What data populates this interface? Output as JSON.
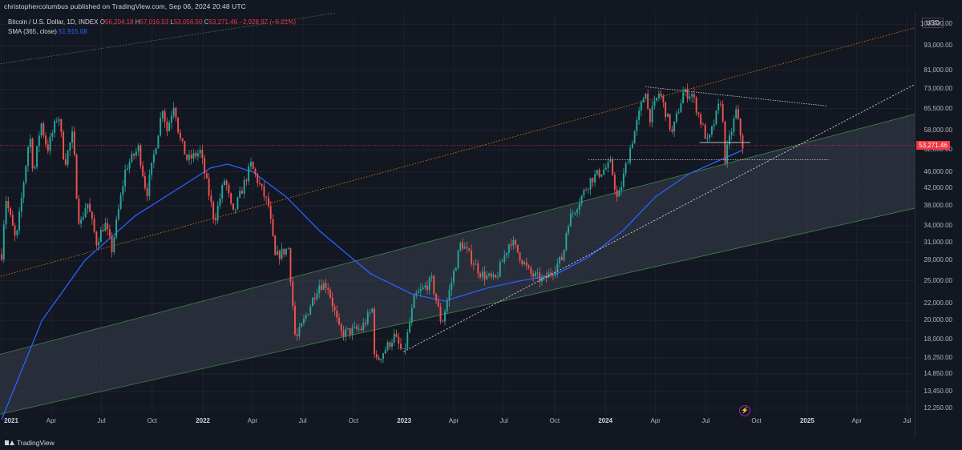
{
  "header": {
    "published": "christophercolumbus published on TradingView.com, Sep 06, 2024 20:48 UTC"
  },
  "legend": {
    "symbol": "Bitcoin / U.S. Dollar, 1D, INDEX",
    "open_label": "O",
    "open": "56,204.18",
    "high_label": "H",
    "high": "57,016.53",
    "low_label": "L",
    "low": "53,056.50",
    "close_label": "C",
    "close": "53,271.46",
    "change": "−2,928.97 (−5.21%)",
    "sma_label": "SMA (365, close)",
    "sma_value": "51,915.08"
  },
  "axis": {
    "currency": "USD",
    "last_price": "53,271.46"
  },
  "colors": {
    "background": "#131722",
    "up": "#26a69a",
    "down": "#ef5350",
    "sma": "#2962ff",
    "channel_fill": "#3b3f4f",
    "upper_channel": "#ff9800",
    "outer_channel": "#4caf50",
    "trendline": "#d1d4dc",
    "last_price_line": "#f23645"
  },
  "footer": {
    "brand": "TradingView"
  },
  "event_icon": "lightning-event-icon",
  "chart_data": {
    "type": "candlestick",
    "title": "Bitcoin / U.S. Dollar, 1D, INDEX",
    "scale": "log",
    "ylim": [
      11800,
      112000
    ],
    "xlim": [
      "2020-12-29",
      "2025-07-15"
    ],
    "y_ticks": [
      105000,
      93000,
      81000,
      73000,
      65500,
      58000,
      52000,
      46000,
      42000,
      38000,
      34000,
      31000,
      28000,
      25000,
      22000,
      20000,
      18000,
      16250,
      14850,
      13450,
      12250
    ],
    "x_ticks": [
      {
        "date": "2021-01-01",
        "label": "2021",
        "year": true
      },
      {
        "date": "2021-04-01",
        "label": "Apr"
      },
      {
        "date": "2021-07-01",
        "label": "Jul"
      },
      {
        "date": "2021-10-01",
        "label": "Oct"
      },
      {
        "date": "2022-01-01",
        "label": "2022",
        "year": true
      },
      {
        "date": "2022-04-01",
        "label": "Apr"
      },
      {
        "date": "2022-07-01",
        "label": "Jul"
      },
      {
        "date": "2022-10-01",
        "label": "Oct"
      },
      {
        "date": "2023-01-01",
        "label": "2023",
        "year": true
      },
      {
        "date": "2023-04-01",
        "label": "Apr"
      },
      {
        "date": "2023-07-01",
        "label": "Jul"
      },
      {
        "date": "2023-10-01",
        "label": "Oct"
      },
      {
        "date": "2024-01-01",
        "label": "2024",
        "year": true
      },
      {
        "date": "2024-04-01",
        "label": "Apr"
      },
      {
        "date": "2024-07-01",
        "label": "Jul"
      },
      {
        "date": "2024-10-01",
        "label": "Oct"
      },
      {
        "date": "2025-01-01",
        "label": "2025",
        "year": true
      },
      {
        "date": "2025-04-01",
        "label": "Apr"
      },
      {
        "date": "2025-07-01",
        "label": "Jul"
      }
    ],
    "price_path": [
      [
        "2021-01-01",
        29000
      ],
      [
        "2021-01-08",
        40000
      ],
      [
        "2021-01-27",
        31000
      ],
      [
        "2021-02-21",
        57000
      ],
      [
        "2021-02-28",
        45000
      ],
      [
        "2021-03-13",
        61000
      ],
      [
        "2021-03-25",
        52000
      ],
      [
        "2021-04-14",
        64000
      ],
      [
        "2021-04-25",
        48000
      ],
      [
        "2021-05-10",
        57000
      ],
      [
        "2021-05-19",
        37000
      ],
      [
        "2021-05-23",
        34000
      ],
      [
        "2021-06-05",
        39000
      ],
      [
        "2021-06-22",
        31000
      ],
      [
        "2021-07-07",
        34500
      ],
      [
        "2021-07-20",
        29800
      ],
      [
        "2021-08-14",
        47000
      ],
      [
        "2021-09-06",
        52500
      ],
      [
        "2021-09-21",
        40500
      ],
      [
        "2021-10-20",
        66000
      ],
      [
        "2021-10-28",
        58000
      ],
      [
        "2021-11-10",
        68000
      ],
      [
        "2021-11-19",
        56000
      ],
      [
        "2021-12-04",
        49000
      ],
      [
        "2021-12-27",
        51500
      ],
      [
        "2022-01-22",
        35000
      ],
      [
        "2022-02-10",
        44500
      ],
      [
        "2022-02-24",
        36000
      ],
      [
        "2022-03-29",
        47800
      ],
      [
        "2022-04-30",
        38000
      ],
      [
        "2022-05-12",
        28500
      ],
      [
        "2022-06-05",
        30000
      ],
      [
        "2022-06-18",
        17800
      ],
      [
        "2022-07-30",
        24500
      ],
      [
        "2022-08-15",
        24400
      ],
      [
        "2022-09-07",
        18600
      ],
      [
        "2022-10-15",
        19100
      ],
      [
        "2022-11-05",
        21400
      ],
      [
        "2022-11-09",
        15700
      ],
      [
        "2022-12-14",
        18300
      ],
      [
        "2022-12-31",
        16500
      ],
      [
        "2023-01-20",
        22800
      ],
      [
        "2023-02-20",
        25000
      ],
      [
        "2023-03-10",
        19600
      ],
      [
        "2023-04-14",
        31000
      ],
      [
        "2023-05-20",
        26000
      ],
      [
        "2023-06-15",
        25000
      ],
      [
        "2023-07-13",
        31500
      ],
      [
        "2023-08-17",
        26000
      ],
      [
        "2023-09-11",
        25000
      ],
      [
        "2023-10-16",
        28500
      ],
      [
        "2023-10-24",
        34500
      ],
      [
        "2023-12-05",
        44000
      ],
      [
        "2024-01-11",
        48000
      ],
      [
        "2024-01-23",
        39000
      ],
      [
        "2024-02-15",
        52500
      ],
      [
        "2024-03-14",
        73000
      ],
      [
        "2024-03-20",
        61500
      ],
      [
        "2024-04-08",
        72000
      ],
      [
        "2024-05-01",
        57000
      ],
      [
        "2024-05-21",
        71500
      ],
      [
        "2024-06-06",
        71000
      ],
      [
        "2024-07-05",
        53800
      ],
      [
        "2024-07-29",
        69500
      ],
      [
        "2024-08-05",
        49500
      ],
      [
        "2024-08-25",
        64500
      ],
      [
        "2024-09-06",
        53271
      ]
    ],
    "sma365_path": [
      [
        "2021-01-01",
        11500
      ],
      [
        "2021-03-15",
        20000
      ],
      [
        "2021-06-01",
        28000
      ],
      [
        "2021-09-01",
        36000
      ],
      [
        "2021-12-01",
        43000
      ],
      [
        "2022-01-15",
        47000
      ],
      [
        "2022-02-15",
        48000
      ],
      [
        "2022-04-01",
        46000
      ],
      [
        "2022-06-01",
        40000
      ],
      [
        "2022-08-01",
        33000
      ],
      [
        "2022-11-01",
        26000
      ],
      [
        "2023-01-15",
        23200
      ],
      [
        "2023-03-15",
        22300
      ],
      [
        "2023-06-01",
        24000
      ],
      [
        "2023-08-01",
        25000
      ],
      [
        "2023-10-01",
        25800
      ],
      [
        "2023-12-01",
        28500
      ],
      [
        "2024-02-01",
        33000
      ],
      [
        "2024-04-01",
        40000
      ],
      [
        "2024-06-01",
        45500
      ],
      [
        "2024-09-06",
        51915
      ]
    ],
    "drawings": {
      "channel_lower": [
        [
          "2020-12-25",
          11800
        ],
        [
          "2025-07-15",
          37500
        ]
      ],
      "channel_upper": [
        [
          "2020-12-25",
          16500
        ],
        [
          "2025-07-15",
          63500
        ]
      ],
      "upper_dotted": [
        [
          "2020-12-25",
          25500
        ],
        [
          "2025-07-15",
          103000
        ]
      ],
      "outer_dotted": [
        [
          "2020-12-25",
          84000
        ],
        [
          "2022-09-01",
          112000
        ]
      ],
      "trendline": [
        [
          "2022-12-31",
          16800
        ],
        [
          "2025-07-15",
          75000
        ]
      ],
      "triangle_top": [
        [
          "2024-03-14",
          74000
        ],
        [
          "2025-02-05",
          66500
        ]
      ],
      "support_upper": [
        [
          "2024-06-20",
          54200
        ],
        [
          "2024-09-20",
          54200
        ]
      ],
      "support_lower": [
        [
          "2023-12-01",
          49200
        ],
        [
          "2025-02-10",
          49200
        ]
      ],
      "last_price": 53271.46
    }
  }
}
